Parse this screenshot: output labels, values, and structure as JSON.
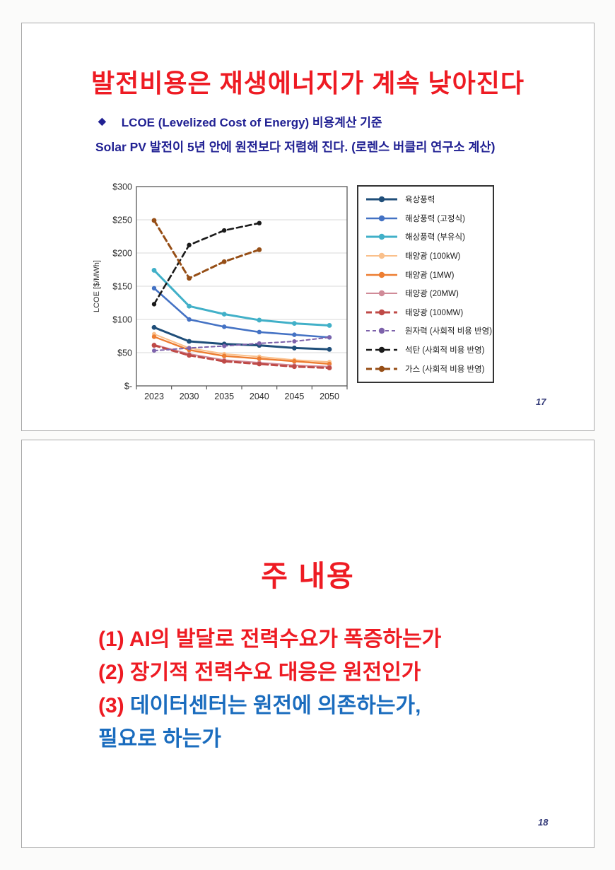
{
  "colors": {
    "title_red": "#ee1b23",
    "body_navy": "#212193",
    "content_blue": "#1a6cbe",
    "page_number_navy": "#333a78"
  },
  "slide1": {
    "title": "발전비용은 재생에너지가 계속 낮아진다",
    "bullet_icon": "◆",
    "bullet_text": "LCOE (Levelized Cost of Energy) 비용계산 기준",
    "subtitle": "Solar PV 발전이 5년 안에 원전보다 저렴해 진다. (로렌스 버클리 연구소 계산)",
    "page_number": "17"
  },
  "chart_data": {
    "type": "line",
    "title": "",
    "xlabel": "",
    "ylabel": "LCOE [$/MWh]",
    "categories": [
      "2023",
      "2030",
      "2035",
      "2040",
      "2045",
      "2050"
    ],
    "ylim": [
      0,
      300
    ],
    "yticks": [
      0,
      50,
      100,
      150,
      200,
      250,
      300
    ],
    "ytick_labels": [
      "$-",
      "$50",
      "$100",
      "$150",
      "$200",
      "$250",
      "$300"
    ],
    "grid": true,
    "legend_position": "right",
    "series": [
      {
        "name": "육상풍력",
        "color": "#1f4e79",
        "dash": "",
        "width": 3,
        "marker": 3.4,
        "values": [
          88,
          67,
          63,
          61,
          57,
          55
        ]
      },
      {
        "name": "해상풍력 (고정식)",
        "color": "#4472c4",
        "dash": "",
        "width": 2.6,
        "marker": 3.2,
        "values": [
          147,
          100,
          89,
          81,
          77,
          73
        ]
      },
      {
        "name": "해상풍력 (부유식)",
        "color": "#41b0c8",
        "dash": "",
        "width": 3,
        "marker": 3.4,
        "values": [
          174,
          120,
          108,
          99,
          94,
          91
        ]
      },
      {
        "name": "태양광 (100kW)",
        "color": "#fac08b",
        "dash": "",
        "width": 2,
        "marker": 3,
        "values": [
          78,
          57,
          48,
          44,
          39,
          36
        ]
      },
      {
        "name": "태양광 (1MW)",
        "color": "#ed7d31",
        "dash": "",
        "width": 2.4,
        "marker": 3.2,
        "values": [
          74,
          54,
          45,
          41,
          37,
          33
        ]
      },
      {
        "name": "태양광 (20MW)",
        "color": "#d08b98",
        "dash": "",
        "width": 2,
        "marker": 3,
        "values": [
          62,
          48,
          39,
          35,
          31,
          29
        ]
      },
      {
        "name": "태양광 (100MW)",
        "color": "#bf4a47",
        "dash": "8 5",
        "width": 3,
        "marker": 3.4,
        "values": [
          61,
          46,
          37,
          33,
          29,
          27
        ]
      },
      {
        "name": "원자력 (사회적 비용 반영)",
        "color": "#7d62ab",
        "dash": "5 4",
        "width": 2,
        "marker": 3,
        "values": [
          53,
          57,
          60,
          64,
          67,
          73
        ]
      },
      {
        "name": "석탄 (사회적 비용 반영)",
        "color": "#1a1a1a",
        "dash": "8 5",
        "width": 2.6,
        "marker": 3.2,
        "values": [
          123,
          212,
          234,
          245,
          null,
          null
        ]
      },
      {
        "name": "가스 (사회적 비용 반영)",
        "color": "#964e16",
        "dash": "8 5",
        "width": 3,
        "marker": 3.4,
        "values": [
          249,
          162,
          187,
          205,
          null,
          null
        ]
      }
    ]
  },
  "slide2": {
    "title": "주 내용",
    "line1": "(1) AI의 발달로 전력수요가 폭증하는가",
    "line2": "(2) 장기적 전력수요 대응은 원전인가",
    "line3_prefix": "(3)",
    "line3_text": " 데이터센터는 원전에 의존하는가,",
    "line4": "필요로 하는가",
    "page_number": "18"
  }
}
